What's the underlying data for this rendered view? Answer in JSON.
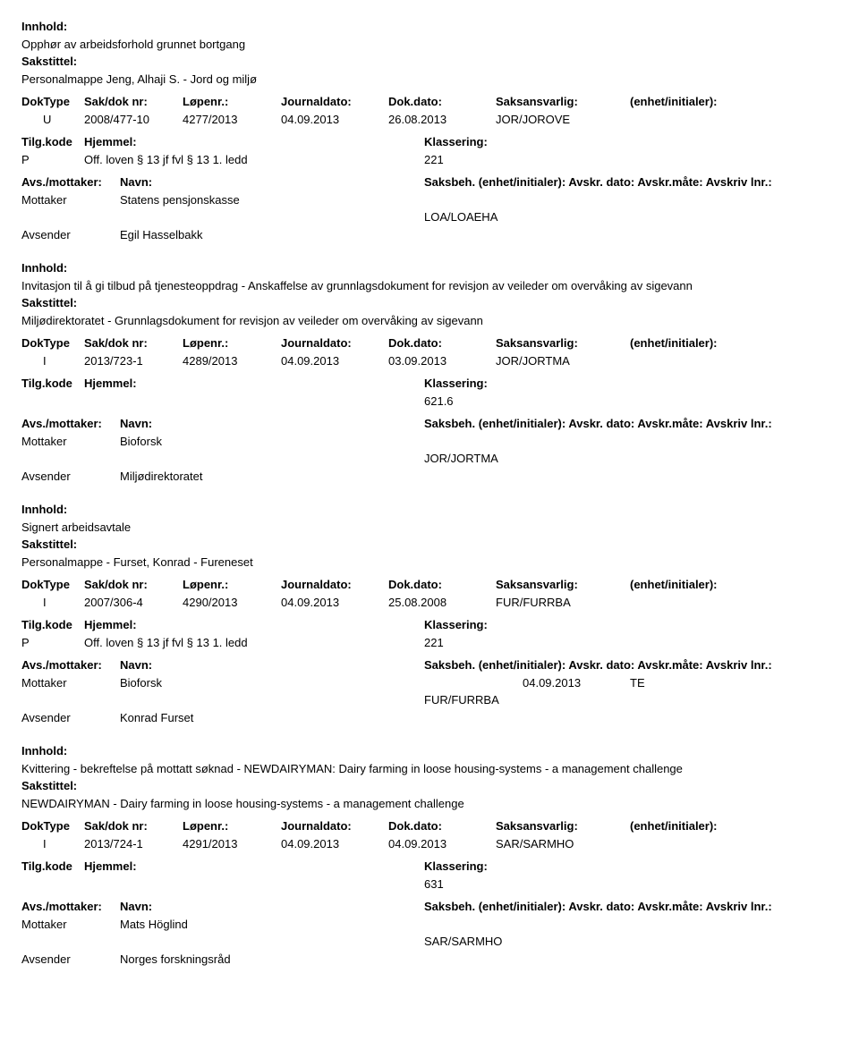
{
  "labels": {
    "innhold": "Innhold:",
    "sakstittel": "Sakstittel:",
    "doktype": "DokType",
    "sakdok": "Sak/dok nr:",
    "lopenr": "Løpenr.:",
    "journaldato": "Journaldato:",
    "dokdato": "Dok.dato:",
    "saksansvarlig": "Saksansvarlig:",
    "enhet_initialer": "(enhet/initialer):",
    "tilgkode": "Tilg.kode",
    "hjemmel": "Hjemmel:",
    "p": "P",
    "klassering": "Klassering:",
    "avs_mottaker": "Avs./mottaker:",
    "navn": "Navn:",
    "saksbeh_full": "Saksbeh. (enhet/initialer): Avskr. dato: Avskr.måte: Avskriv lnr.:",
    "mottaker": "Mottaker",
    "avsender": "Avsender"
  },
  "entries": [
    {
      "innhold": "Opphør av arbeidsforhold grunnet bortgang",
      "sakstittel": "Personalmappe Jeng, Alhaji S. - Jord og miljø",
      "doktype": "U",
      "sakdok": "2008/477-10",
      "lopenr": "4277/2013",
      "journaldato": "04.09.2013",
      "dokdato": "26.08.2013",
      "saksansvarlig": "JOR/JOROVE",
      "tilg_p": "P",
      "hjemmel": "Off. loven § 13 jf fvl § 13 1. ledd",
      "klassering": "221",
      "mottaker": "Statens pensjonskasse",
      "saksbeh_date": "",
      "saksbeh_type": "",
      "avsender": "Egil Hasselbakk",
      "avsender_code": "LOA/LOAEHA"
    },
    {
      "innhold": "Invitasjon til å gi tilbud på tjenesteoppdrag - Anskaffelse av grunnlagsdokument for revisjon av veileder om overvåking av sigevann",
      "sakstittel": "Miljødirektoratet - Grunnlagsdokument for revisjon av veileder om overvåking av sigevann",
      "doktype": "I",
      "sakdok": "2013/723-1",
      "lopenr": "4289/2013",
      "journaldato": "04.09.2013",
      "dokdato": "03.09.2013",
      "saksansvarlig": "JOR/JORTMA",
      "tilg_p": "",
      "hjemmel": "",
      "klassering": "621.6",
      "mottaker": "Bioforsk",
      "saksbeh_date": "",
      "saksbeh_type": "",
      "avsender": "Miljødirektoratet",
      "avsender_code": "JOR/JORTMA"
    },
    {
      "innhold": "Signert arbeidsavtale",
      "sakstittel": "Personalmappe - Furset, Konrad - Fureneset",
      "doktype": "I",
      "sakdok": "2007/306-4",
      "lopenr": "4290/2013",
      "journaldato": "04.09.2013",
      "dokdato": "25.08.2008",
      "saksansvarlig": "FUR/FURRBA",
      "tilg_p": "P",
      "hjemmel": "Off. loven § 13 jf fvl § 13 1. ledd",
      "klassering": "221",
      "mottaker": "Bioforsk",
      "saksbeh_date": "04.09.2013",
      "saksbeh_type": "TE",
      "avsender": "Konrad Furset",
      "avsender_code": "FUR/FURRBA"
    },
    {
      "innhold": "Kvittering - bekreftelse på mottatt søknad - NEWDAIRYMAN: Dairy farming in loose housing-systems - a management challenge",
      "sakstittel": "NEWDAIRYMAN - Dairy farming in loose housing-systems - a management challenge",
      "doktype": "I",
      "sakdok": "2013/724-1",
      "lopenr": "4291/2013",
      "journaldato": "04.09.2013",
      "dokdato": "04.09.2013",
      "saksansvarlig": "SAR/SARMHO",
      "tilg_p": "",
      "hjemmel": "",
      "klassering": "631",
      "mottaker": "Mats Höglind",
      "saksbeh_date": "",
      "saksbeh_type": "",
      "avsender": "Norges forskningsråd",
      "avsender_code": "SAR/SARMHO"
    }
  ]
}
